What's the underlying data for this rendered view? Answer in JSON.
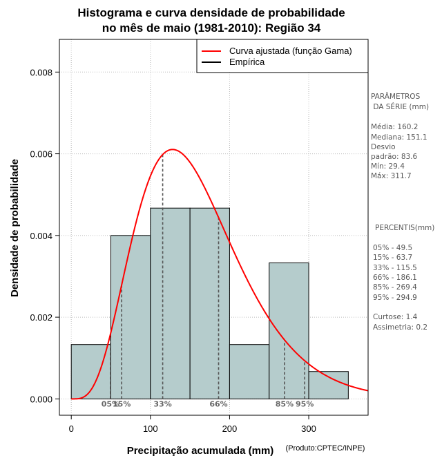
{
  "chart_data": {
    "type": "histogram",
    "title_line1": "Histograma e curva densidade de probabilidade",
    "title_line2": "no mês de maio (1981-2010): Região 34",
    "xlabel": "Precipitação acumulada (mm)",
    "ylabel": "Densidade de probabilidade",
    "credit": "(Produto:CPTEC/INPE)",
    "xlim": [
      -15,
      375
    ],
    "ylim": [
      -0.0004,
      0.0088
    ],
    "x_ticks": [
      0,
      100,
      200,
      300
    ],
    "y_ticks": [
      0.0,
      0.002,
      0.004,
      0.006,
      0.008
    ],
    "y_tick_labels": [
      "0.000",
      "0.002",
      "0.004",
      "0.006",
      "0.008"
    ],
    "grid": true,
    "bin_edges": [
      0,
      50,
      100,
      150,
      200,
      250,
      300,
      350
    ],
    "bin_densities": [
      0.00133,
      0.004,
      0.00467,
      0.00467,
      0.00133,
      0.00333,
      0.00067
    ],
    "bar_color": "#b5cccc",
    "curve": {
      "name": "Curva ajustada (função Gama)",
      "color": "#ff0000",
      "shape": 5.0,
      "scale": 32.0
    },
    "empirical_name": "Empírica",
    "legend_position": "top-right",
    "percentiles": [
      {
        "label": "05%",
        "x": 49.5
      },
      {
        "label": "15%",
        "x": 63.7
      },
      {
        "label": "33%",
        "x": 115.5
      },
      {
        "label": "66%",
        "x": 186.1
      },
      {
        "label": "85%",
        "x": 269.4
      },
      {
        "label": "95%",
        "x": 294.9
      }
    ]
  },
  "side_panel": {
    "params_title_1": "PARÂMETROS",
    "params_title_2": " DA SÉRIE (mm)",
    "media": "Média:  160.2",
    "mediana": "Mediana:  151.1",
    "desvio_1": "Desvio",
    "desvio_2": "padrão:  83.6",
    "min": "Mín:  29.4",
    "max": "Máx:  311.7",
    "percentis_title": "PERCENTIS(mm)",
    "p05": "05% -  49.5",
    "p15": "15% -  63.7",
    "p33": "33% -  115.5",
    "p66": "66% -  186.1",
    "p85": "85% -  269.4",
    "p95": "95% -  294.9",
    "curtose": "Curtose:  1.4",
    "assimetria": "Assimetria:  0.2"
  }
}
